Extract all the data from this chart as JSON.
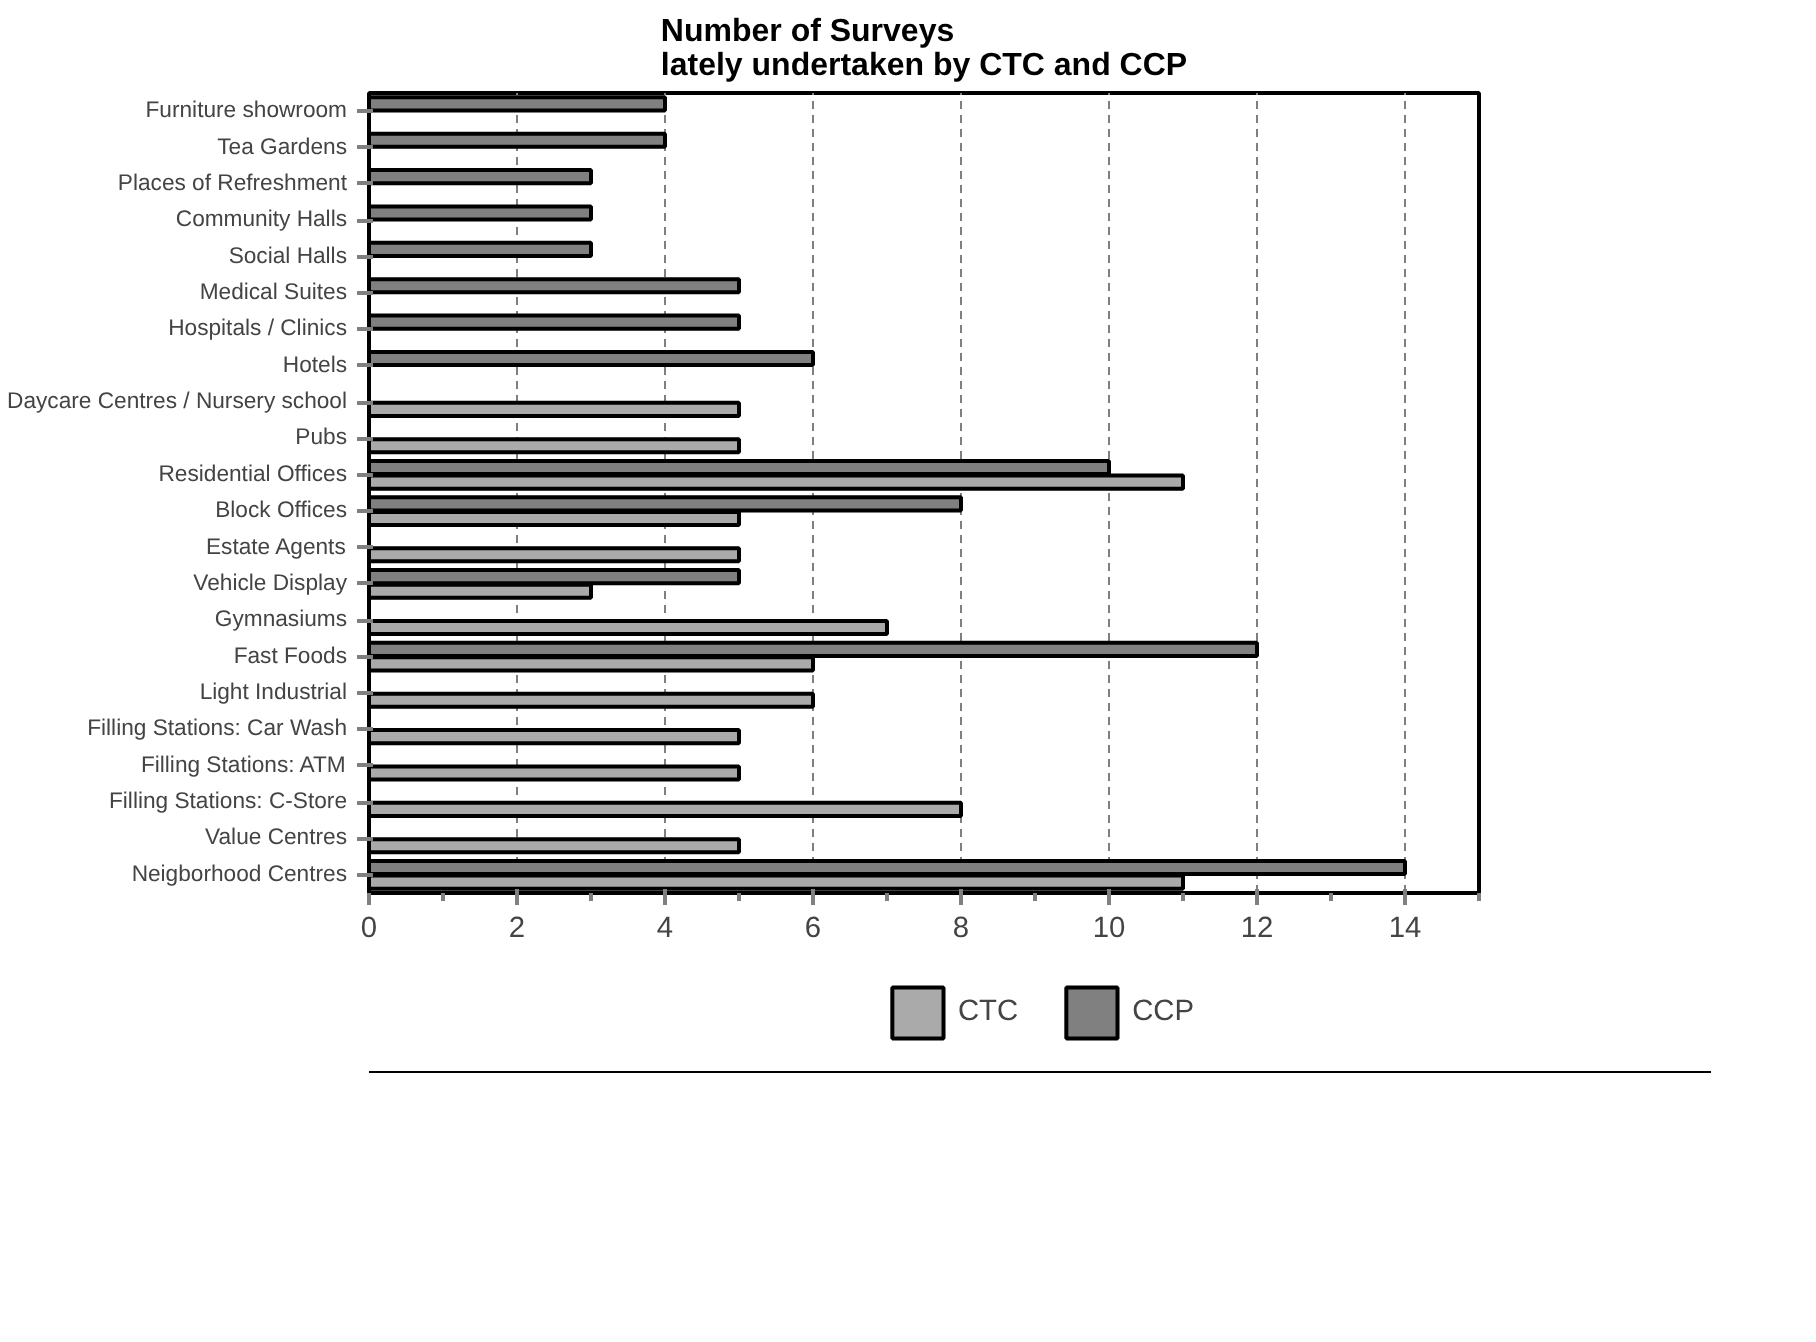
{
  "chart_data": {
    "type": "bar",
    "orientation": "horizontal",
    "title": "Number of Surveys\nlately undertaken by CTC and CCP",
    "categories": [
      "Furniture showroom",
      "Tea Gardens",
      "Places of Refreshment",
      "Community Halls",
      "Social Halls",
      "Medical Suites",
      "Hospitals / Clinics",
      "Hotels",
      "Daycare Centres / Nursery school",
      "Pubs",
      "Residential Offices",
      "Block Offices",
      "Estate Agents",
      "Vehicle Display",
      "Gymnasiums",
      "Fast Foods",
      "Light Industrial",
      "Filling Stations: Car Wash",
      "Filling Stations: ATM",
      "Filling Stations: C-Store",
      "Value Centres",
      "Neigborhood Centres"
    ],
    "series": [
      {
        "name": "CTC",
        "color": "#aaaaaa",
        "values": [
          null,
          null,
          null,
          null,
          null,
          null,
          null,
          null,
          5,
          5,
          11,
          5,
          5,
          3,
          7,
          6,
          6,
          5,
          5,
          8,
          5,
          11
        ]
      },
      {
        "name": "CCP",
        "color": "#808080",
        "values": [
          4,
          4,
          3,
          3,
          3,
          5,
          5,
          6,
          null,
          null,
          10,
          8,
          null,
          5,
          null,
          12,
          null,
          null,
          null,
          null,
          null,
          14
        ]
      }
    ],
    "xlim": [
      0,
      15
    ],
    "xticks": [
      0,
      2,
      4,
      6,
      8,
      10,
      12,
      14
    ],
    "grid": "x",
    "legend": "bottom"
  }
}
